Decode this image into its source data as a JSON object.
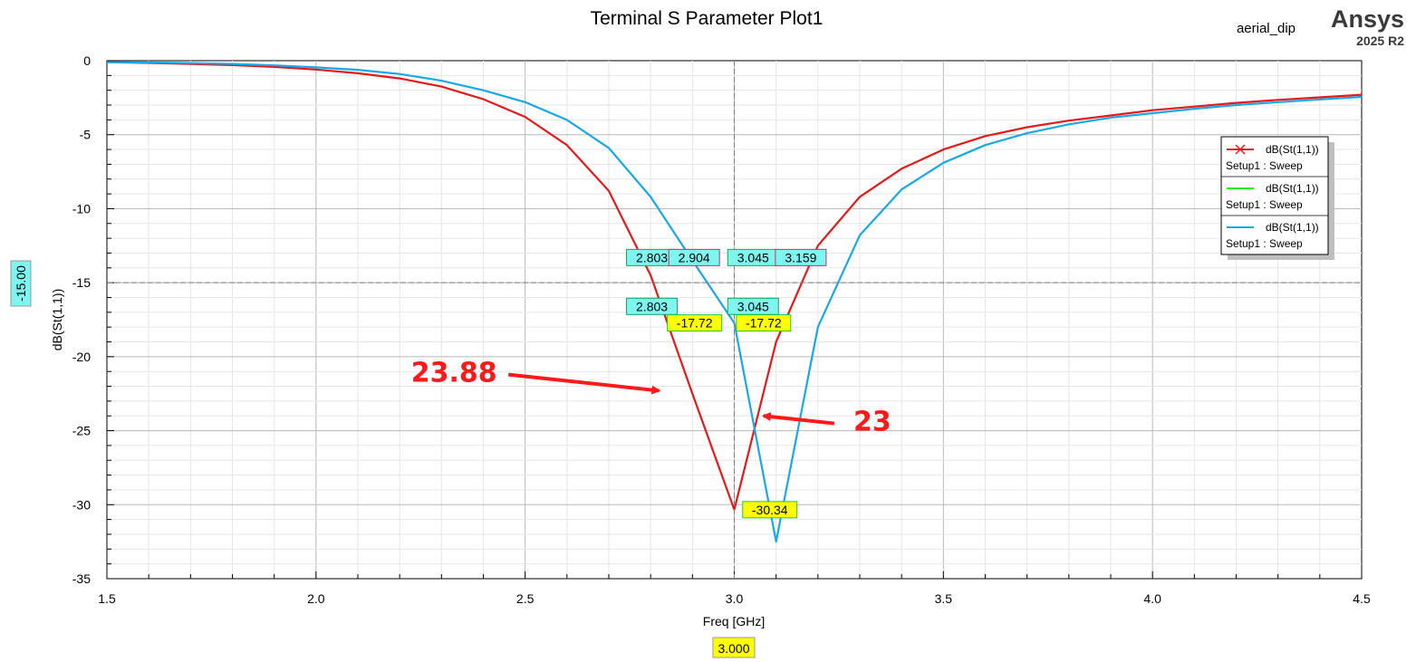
{
  "header": {
    "title": "Terminal S Parameter Plot1",
    "project": "aerial_dip",
    "brand": "Ansys",
    "version": "2025 R2"
  },
  "colors": {
    "red": "#e31a1c",
    "blue": "#1aa7e6",
    "green": "#22ee22",
    "marker_cyan": "#7ff5f0",
    "marker_yellow": "#ffff00",
    "annotation": "#ff1a1a"
  },
  "chart_data": {
    "type": "line",
    "title": "Terminal S Parameter Plot1",
    "xlabel": "Freq [GHz]",
    "ylabel": "dB(St(1,1))",
    "xlim": [
      1.5,
      4.5
    ],
    "ylim": [
      -35,
      0
    ],
    "x_ticks": [
      "1.5",
      "2.0",
      "2.5",
      "3.0",
      "3.5",
      "4.0",
      "4.5"
    ],
    "y_ticks": [
      "0",
      "-5",
      "-10",
      "-15",
      "-20",
      "-25",
      "-30",
      "-35"
    ],
    "grid": true,
    "cursor_x": "3.000",
    "cursor_y": "-15.00",
    "legend_position": "right",
    "series": [
      {
        "name": "dB(St(1,1))",
        "setup": "Setup1 : Sweep",
        "color": "#e31a1c",
        "x": [
          1.5,
          1.6,
          1.7,
          1.8,
          1.9,
          2.0,
          2.1,
          2.2,
          2.3,
          2.4,
          2.5,
          2.6,
          2.7,
          2.8,
          2.9,
          3.0,
          3.1,
          3.2,
          3.3,
          3.4,
          3.5,
          3.6,
          3.7,
          3.8,
          3.9,
          4.0,
          4.1,
          4.2,
          4.3,
          4.4,
          4.5
        ],
        "y": [
          -0.1,
          -0.15,
          -0.22,
          -0.3,
          -0.42,
          -0.6,
          -0.85,
          -1.2,
          -1.75,
          -2.6,
          -3.8,
          -5.7,
          -8.8,
          -14.5,
          -22.5,
          -30.34,
          -19.0,
          -12.5,
          -9.2,
          -7.3,
          -6.0,
          -5.1,
          -4.5,
          -4.05,
          -3.7,
          -3.35,
          -3.1,
          -2.85,
          -2.65,
          -2.48,
          -2.3
        ]
      },
      {
        "name": "dB(St(1,1))",
        "setup": "Setup1 : Sweep",
        "color": "#22ee22",
        "x": [],
        "y": []
      },
      {
        "name": "dB(St(1,1))",
        "setup": "Setup1 : Sweep",
        "color": "#1aa7e6",
        "x": [
          1.5,
          1.6,
          1.7,
          1.8,
          1.9,
          2.0,
          2.1,
          2.2,
          2.3,
          2.4,
          2.5,
          2.6,
          2.7,
          2.8,
          2.9,
          3.0,
          3.1,
          3.2,
          3.3,
          3.4,
          3.5,
          3.6,
          3.7,
          3.8,
          3.9,
          4.0,
          4.1,
          4.2,
          4.3,
          4.4,
          4.5
        ],
        "y": [
          -0.1,
          -0.12,
          -0.16,
          -0.22,
          -0.32,
          -0.45,
          -0.62,
          -0.9,
          -1.35,
          -2.0,
          -2.8,
          -4.0,
          -5.9,
          -9.2,
          -13.5,
          -17.72,
          -32.5,
          -18.0,
          -11.8,
          -8.7,
          -6.9,
          -5.7,
          -4.9,
          -4.3,
          -3.85,
          -3.55,
          -3.25,
          -3.0,
          -2.8,
          -2.62,
          -2.45
        ]
      }
    ],
    "markers": [
      {
        "label": "2.803",
        "x": 2.803,
        "y": -13.3,
        "style": "cyan"
      },
      {
        "label": "2.904",
        "x": 2.904,
        "y": -13.3,
        "style": "pink"
      },
      {
        "label": "3.045",
        "x": 3.045,
        "y": -13.3,
        "style": "cyan"
      },
      {
        "label": "3.159",
        "x": 3.159,
        "y": -13.3,
        "style": "pink"
      },
      {
        "label": "2.803",
        "x": 2.803,
        "y": -16.6,
        "style": "cyan"
      },
      {
        "label": "3.045",
        "x": 3.045,
        "y": -16.6,
        "style": "cyan"
      },
      {
        "label": "-17.72",
        "x": 2.905,
        "y": -17.72,
        "style": "yellow"
      },
      {
        "label": "-17.72",
        "x": 3.07,
        "y": -17.72,
        "style": "yellow"
      },
      {
        "label": "-30.34",
        "x": 3.085,
        "y": -30.34,
        "style": "yellow"
      }
    ],
    "annotations": [
      {
        "text": "23.88",
        "x": 2.33,
        "y": -21.7,
        "arrow_to": [
          2.82,
          -22.3
        ]
      },
      {
        "text": "23",
        "x": 3.33,
        "y": -25.0,
        "arrow_to": [
          3.07,
          -24.0
        ]
      }
    ]
  }
}
